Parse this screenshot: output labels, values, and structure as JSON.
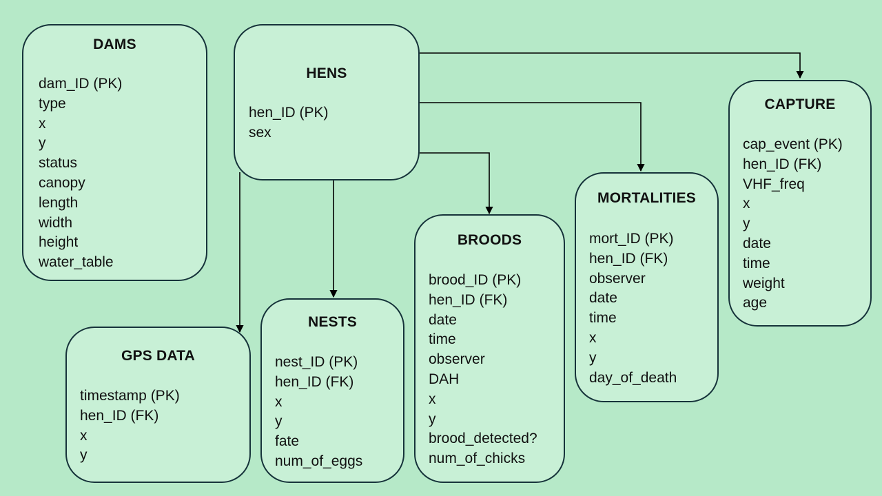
{
  "entities": {
    "dams": {
      "title": "DAMS",
      "fields": [
        "dam_ID (PK)",
        "type",
        "x",
        "y",
        "status",
        "canopy",
        "length",
        "width",
        "height",
        "water_table"
      ]
    },
    "hens": {
      "title": "HENS",
      "fields": [
        "hen_ID (PK)",
        "sex"
      ]
    },
    "capture": {
      "title": "CAPTURE",
      "fields": [
        "cap_event (PK)",
        "hen_ID (FK)",
        "VHF_freq",
        "x",
        "y",
        "date",
        "time",
        "weight",
        "age"
      ]
    },
    "mortalities": {
      "title": "MORTALITIES",
      "fields": [
        "mort_ID (PK)",
        "hen_ID (FK)",
        "observer",
        "date",
        "time",
        "x",
        "y",
        "day_of_death"
      ]
    },
    "broods": {
      "title": "BROODS",
      "fields": [
        "brood_ID (PK)",
        "hen_ID (FK)",
        "date",
        "time",
        "observer",
        "DAH",
        "x",
        "y",
        "brood_detected?",
        "num_of_chicks"
      ]
    },
    "nests": {
      "title": "NESTS",
      "fields": [
        "nest_ID (PK)",
        "hen_ID (FK)",
        "x",
        "y",
        "fate",
        "num_of_eggs"
      ]
    },
    "gps_data": {
      "title": "GPS DATA",
      "fields": [
        "timestamp (PK)",
        "hen_ID (FK)",
        "x",
        "y"
      ]
    }
  },
  "relationships": [
    {
      "from": "hens",
      "to": "capture"
    },
    {
      "from": "hens",
      "to": "mortalities"
    },
    {
      "from": "hens",
      "to": "broods"
    },
    {
      "from": "hens",
      "to": "nests"
    },
    {
      "from": "hens",
      "to": "gps_data"
    }
  ],
  "colors": {
    "background": "#b6e9c8",
    "box_fill": "#c8f0d6",
    "border": "#16333a",
    "connector": "#000000"
  }
}
